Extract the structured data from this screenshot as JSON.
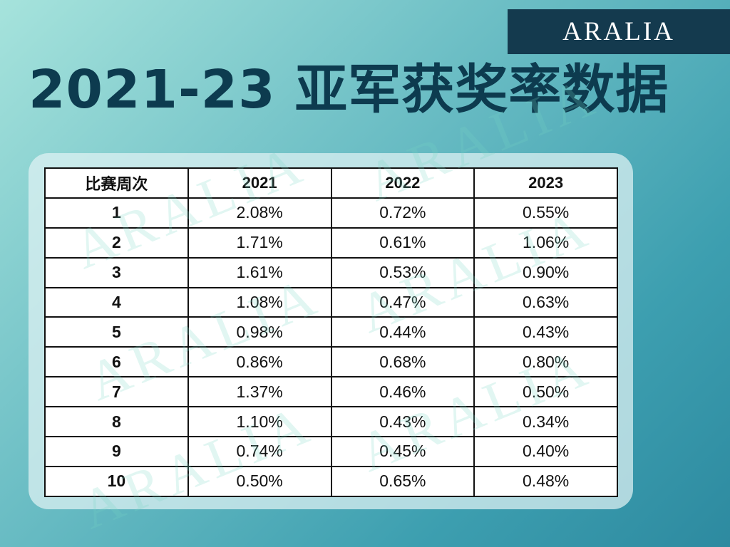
{
  "brand": {
    "logo_text": "ARALIA",
    "logo_color": "#143a4e"
  },
  "headline": "2021-23 亚军获奖率数据",
  "table": {
    "headers": [
      "比赛周次",
      "2021",
      "2022",
      "2023"
    ],
    "rows": [
      [
        "1",
        "2.08%",
        "0.72%",
        "0.55%"
      ],
      [
        "2",
        "1.71%",
        "0.61%",
        "1.06%"
      ],
      [
        "3",
        "1.61%",
        "0.53%",
        "0.90%"
      ],
      [
        "4",
        "1.08%",
        "0.47%",
        "0.63%"
      ],
      [
        "5",
        "0.98%",
        "0.44%",
        "0.43%"
      ],
      [
        "6",
        "0.86%",
        "0.68%",
        "0.80%"
      ],
      [
        "7",
        "1.37%",
        "0.46%",
        "0.50%"
      ],
      [
        "8",
        "1.10%",
        "0.43%",
        "0.34%"
      ],
      [
        "9",
        "0.74%",
        "0.45%",
        "0.40%"
      ],
      [
        "10",
        "0.50%",
        "0.65%",
        "0.48%"
      ]
    ]
  },
  "watermark": {
    "text": "ARALIA"
  },
  "colors": {
    "headline": "#0d3b4f",
    "background_start": "#a6e3dc",
    "background_end": "#2d8aa0"
  }
}
